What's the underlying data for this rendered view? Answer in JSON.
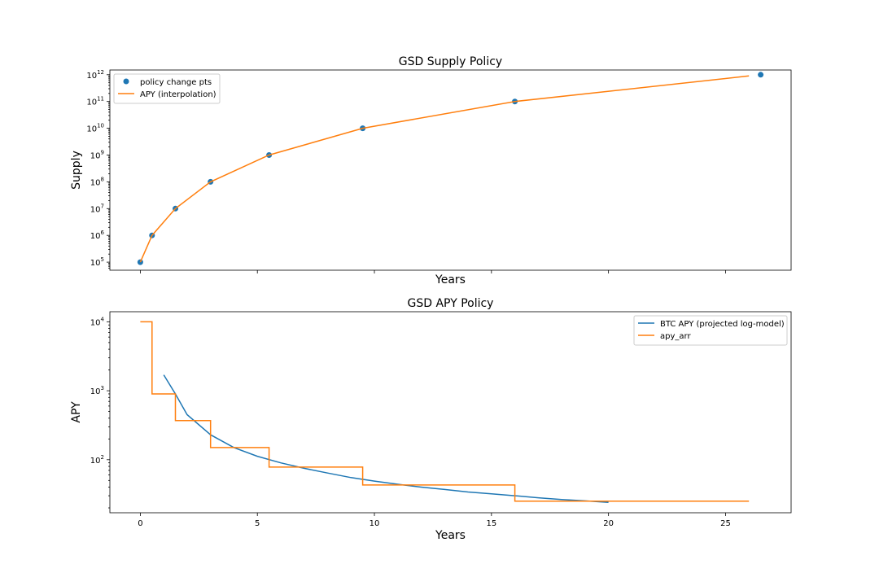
{
  "chart_data": [
    {
      "type": "scatter",
      "title": "GSD Supply Policy",
      "xlabel": "Years",
      "ylabel": "Supply",
      "xlim": [
        -1.3,
        27.8
      ],
      "ylim": [
        50000,
        1500000000000
      ],
      "yscale": "log",
      "xticks": [
        0,
        5,
        10,
        15,
        20,
        25
      ],
      "show_xtick_labels": false,
      "yticks": [
        {
          "value": 100000,
          "base": "10",
          "exp": "5"
        },
        {
          "value": 1000000,
          "base": "10",
          "exp": "6"
        },
        {
          "value": 10000000,
          "base": "10",
          "exp": "7"
        },
        {
          "value": 100000000,
          "base": "10",
          "exp": "8"
        },
        {
          "value": 1000000000,
          "base": "10",
          "exp": "9"
        },
        {
          "value": 10000000000,
          "base": "10",
          "exp": "10"
        },
        {
          "value": 100000000000,
          "base": "10",
          "exp": "11"
        },
        {
          "value": 1000000000000,
          "base": "10",
          "exp": "12"
        }
      ],
      "grid": false,
      "legend_position": "upper-left",
      "series": [
        {
          "name": "policy change pts",
          "kind": "scatter",
          "color": "#1f77b4",
          "x": [
            0,
            0.5,
            1.5,
            3,
            5.5,
            9.5,
            16,
            26.5
          ],
          "y": [
            100000,
            1000000,
            10000000,
            100000000,
            1000000000,
            10000000000,
            100000000000,
            1000000000000
          ]
        },
        {
          "name": "APY (interpolation)",
          "kind": "line",
          "color": "#ff7f0e",
          "x": [
            0,
            0.5,
            1.5,
            3,
            5.5,
            9.5,
            16,
            26
          ],
          "y": [
            100000,
            1000000,
            10000000,
            100000000,
            1000000000,
            10000000000,
            100000000000,
            900000000000
          ]
        }
      ]
    },
    {
      "type": "line",
      "title": "GSD APY Policy",
      "xlabel": "Years",
      "ylabel": "APY",
      "xlim": [
        -1.3,
        27.8
      ],
      "ylim": [
        17,
        14000
      ],
      "yscale": "log",
      "xticks": [
        0,
        5,
        10,
        15,
        20,
        25
      ],
      "show_xtick_labels": true,
      "yticks": [
        {
          "value": 100,
          "base": "10",
          "exp": "2"
        },
        {
          "value": 1000,
          "base": "10",
          "exp": "3"
        },
        {
          "value": 10000,
          "base": "10",
          "exp": "4"
        }
      ],
      "grid": false,
      "legend_position": "upper-right",
      "series": [
        {
          "name": "BTC APY (projected log-model)",
          "kind": "line",
          "color": "#1f77b4",
          "x": [
            1,
            1.5,
            2,
            3,
            4,
            5,
            6,
            7,
            8,
            9,
            10,
            11,
            12,
            13,
            14,
            15,
            16,
            17,
            18,
            19,
            20
          ],
          "y": [
            1700,
            900,
            450,
            230,
            150,
            112,
            90,
            75,
            64,
            55,
            49,
            44,
            40,
            37,
            34,
            32,
            30,
            28,
            26.5,
            25.3,
            24
          ]
        },
        {
          "name": "apy_arr",
          "kind": "step",
          "color": "#ff7f0e",
          "x": [
            0,
            0.5,
            0.5,
            1.5,
            1.5,
            3,
            3,
            5.5,
            5.5,
            9.5,
            9.5,
            16,
            16,
            26
          ],
          "y": [
            10000,
            10000,
            900,
            900,
            370,
            370,
            150,
            150,
            78,
            78,
            43,
            43,
            25,
            25
          ]
        }
      ]
    }
  ]
}
